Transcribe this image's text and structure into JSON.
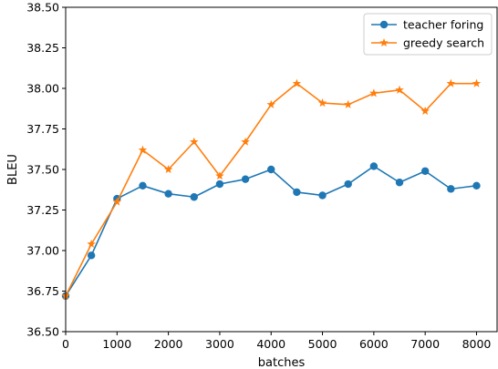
{
  "chart_data": {
    "type": "line",
    "xlabel": "batches",
    "ylabel": "BLEU",
    "xlim": [
      0,
      8400
    ],
    "ylim": [
      36.5,
      38.5
    ],
    "xticks": [
      0,
      1000,
      2000,
      3000,
      4000,
      5000,
      6000,
      7000,
      8000
    ],
    "xtick_labels": [
      "0",
      "1000",
      "2000",
      "3000",
      "4000",
      "5000",
      "6000",
      "7000",
      "8000"
    ],
    "yticks": [
      36.5,
      36.75,
      37.0,
      37.25,
      37.5,
      37.75,
      38.0,
      38.25,
      38.5
    ],
    "ytick_labels": [
      "36.50",
      "36.75",
      "37.00",
      "37.25",
      "37.50",
      "37.75",
      "38.00",
      "38.25",
      "38.50"
    ],
    "grid": false,
    "legend_position": "top-right",
    "x": [
      0,
      500,
      1000,
      1500,
      2000,
      2500,
      3000,
      3500,
      4000,
      4500,
      5000,
      5500,
      6000,
      6500,
      7000,
      7500,
      8000
    ],
    "series": [
      {
        "name": "teacher foring",
        "color": "#1f77b4",
        "marker": "circle",
        "values": [
          36.72,
          36.97,
          37.32,
          37.4,
          37.35,
          37.33,
          37.41,
          37.44,
          37.5,
          37.36,
          37.34,
          37.41,
          37.52,
          37.42,
          37.49,
          37.38,
          37.4
        ]
      },
      {
        "name": "greedy search",
        "color": "#ff7f0e",
        "marker": "star",
        "values": [
          36.72,
          37.04,
          37.3,
          37.62,
          37.5,
          37.67,
          37.46,
          37.67,
          37.9,
          38.03,
          37.91,
          37.9,
          37.97,
          37.99,
          37.86,
          38.03,
          38.03
        ]
      }
    ]
  }
}
